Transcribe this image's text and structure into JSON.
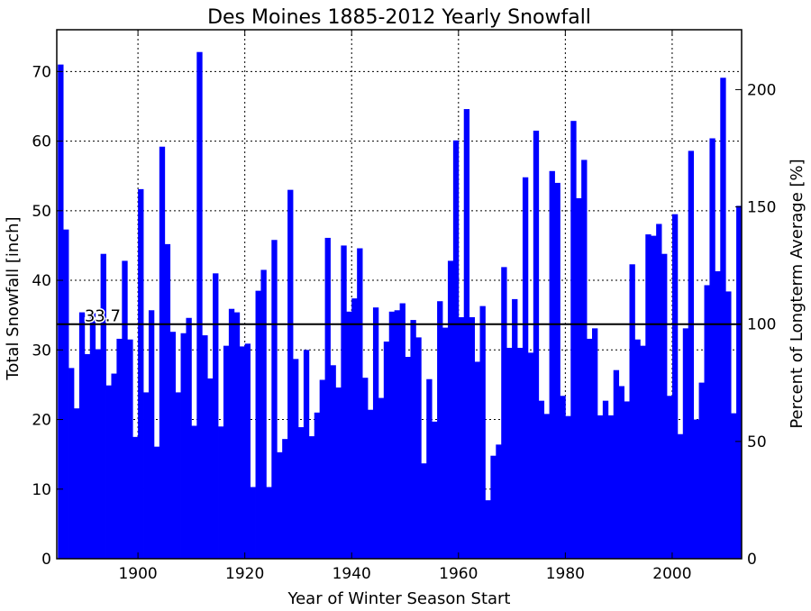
{
  "chart_data": {
    "type": "bar",
    "title": "Des Moines 1885-2012 Yearly Snowfall",
    "xlabel": "Year of Winter Season Start",
    "ylabel": "Total Snowfall [inch]",
    "ylabel_right": "Percent of Longterm Average [%]",
    "x": [
      1885,
      1886,
      1887,
      1888,
      1889,
      1890,
      1891,
      1892,
      1893,
      1894,
      1895,
      1896,
      1897,
      1898,
      1899,
      1900,
      1901,
      1902,
      1903,
      1904,
      1905,
      1906,
      1907,
      1908,
      1909,
      1910,
      1911,
      1912,
      1913,
      1914,
      1915,
      1916,
      1917,
      1918,
      1919,
      1920,
      1921,
      1922,
      1923,
      1924,
      1925,
      1926,
      1927,
      1928,
      1929,
      1930,
      1931,
      1932,
      1933,
      1934,
      1935,
      1936,
      1937,
      1938,
      1939,
      1940,
      1941,
      1942,
      1943,
      1944,
      1945,
      1946,
      1947,
      1948,
      1949,
      1950,
      1951,
      1952,
      1953,
      1954,
      1955,
      1956,
      1957,
      1958,
      1959,
      1960,
      1961,
      1962,
      1963,
      1964,
      1965,
      1966,
      1967,
      1968,
      1969,
      1970,
      1971,
      1972,
      1973,
      1974,
      1975,
      1976,
      1977,
      1978,
      1979,
      1980,
      1981,
      1982,
      1983,
      1984,
      1985,
      1986,
      1987,
      1988,
      1989,
      1990,
      1991,
      1992,
      1993,
      1994,
      1995,
      1996,
      1997,
      1998,
      1999,
      2000,
      2001,
      2002,
      2003,
      2004,
      2005,
      2006,
      2007,
      2008,
      2009,
      2010,
      2011,
      2012
    ],
    "values": [
      71.0,
      47.3,
      27.4,
      21.6,
      35.4,
      29.4,
      35.3,
      30.1,
      43.8,
      24.9,
      26.6,
      31.6,
      42.8,
      31.5,
      17.5,
      53.1,
      23.9,
      35.7,
      16.1,
      59.2,
      45.2,
      32.6,
      23.9,
      32.4,
      34.6,
      19.1,
      72.8,
      32.1,
      25.9,
      41.0,
      19.0,
      30.6,
      35.9,
      35.4,
      30.5,
      30.9,
      10.3,
      38.5,
      41.5,
      10.3,
      45.8,
      15.3,
      17.2,
      53.0,
      28.7,
      18.9,
      30.0,
      17.6,
      21.0,
      25.7,
      46.1,
      27.8,
      24.6,
      45.0,
      35.5,
      37.4,
      44.6,
      26.0,
      21.4,
      36.1,
      23.1,
      31.2,
      35.5,
      35.7,
      36.7,
      29.0,
      34.3,
      31.8,
      13.7,
      25.8,
      19.7,
      37.0,
      33.2,
      42.8,
      60.1,
      34.7,
      64.6,
      34.7,
      28.3,
      36.3,
      8.4,
      14.8,
      16.4,
      41.9,
      30.3,
      37.3,
      30.3,
      54.8,
      29.6,
      61.5,
      22.7,
      20.8,
      55.7,
      54.0,
      23.4,
      20.5,
      62.9,
      51.8,
      57.3,
      31.6,
      33.1,
      20.6,
      22.7,
      20.6,
      27.1,
      24.8,
      22.6,
      42.3,
      31.5,
      30.6,
      46.6,
      46.4,
      48.1,
      43.8,
      23.4,
      49.5,
      17.9,
      33.1,
      58.6,
      20.0,
      25.3,
      39.3,
      60.4,
      41.3,
      69.1,
      38.4,
      20.9,
      50.7
    ],
    "average": 33.7,
    "average_label": "33.7",
    "xlim": [
      1884.8,
      2013
    ],
    "ylim": [
      0,
      76
    ],
    "xticks": [
      1900,
      1920,
      1940,
      1960,
      1980,
      2000
    ],
    "xtick_labels": [
      "1900",
      "1920",
      "1940",
      "1960",
      "1980",
      "2000"
    ],
    "yticks": [
      0,
      10,
      20,
      30,
      40,
      50,
      60,
      70
    ],
    "ytick_labels": [
      "0",
      "10",
      "20",
      "30",
      "40",
      "50",
      "60",
      "70"
    ],
    "yticks_right": [
      0,
      50,
      100,
      150,
      200
    ],
    "ytick_labels_right": [
      "0",
      "50",
      "100",
      "150",
      "200"
    ],
    "grid": true,
    "colors": {
      "bars": "#0000ff",
      "average_line": "#000000",
      "grid": "#000000"
    }
  }
}
